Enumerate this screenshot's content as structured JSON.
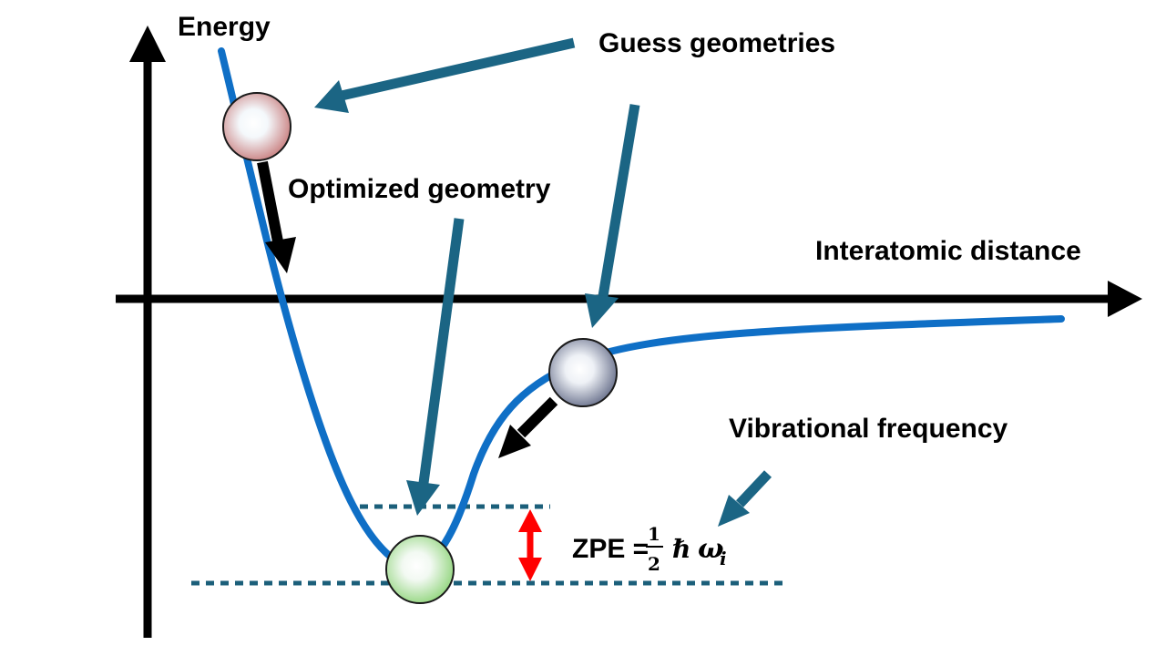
{
  "labels": {
    "energy": "Energy",
    "distance": "Interatomic distance",
    "guess": "Guess geometries",
    "optimized": "Optimized geometry",
    "vibrational": "Vibrational frequency"
  },
  "zpe": {
    "prefix": "ZPE =",
    "numerator": "1",
    "denominator": "2",
    "hbar": "ℏ",
    "omega": "ω",
    "subscript": "i"
  },
  "colors": {
    "curve": "#0f6fc6",
    "pointer": "#1b6584",
    "axis": "#000000",
    "double_arrow": "#ff0000",
    "dashed": "#1b5f7a",
    "ball_start": "#c77a7a",
    "ball_min": "#8fd47a",
    "ball_guess2": "#646c88"
  }
}
